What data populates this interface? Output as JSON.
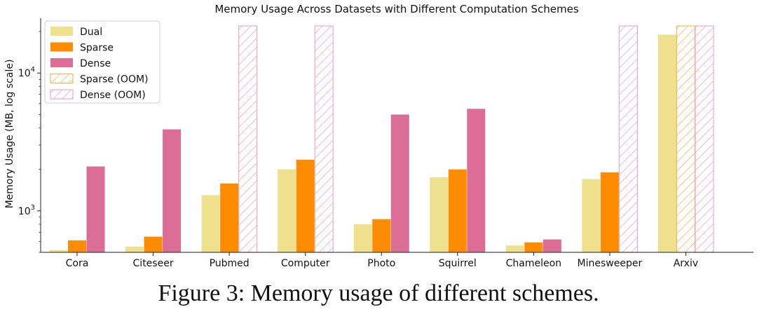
{
  "caption": "Figure 3: Memory usage of different schemes.",
  "chart_data": {
    "type": "bar",
    "title": "Memory Usage Across Datasets with Different Computation Schemes",
    "xlabel": "",
    "ylabel": "Memory Usage (MB, log scale)",
    "yscale": "log",
    "ylim": [
      500,
      25000
    ],
    "yticks": [
      {
        "value": 1000,
        "base": "10",
        "exp": "3"
      },
      {
        "value": 10000,
        "base": "10",
        "exp": "4"
      }
    ],
    "grid": false,
    "legend_position": "top-left",
    "categories": [
      "Cora",
      "Citeseer",
      "Pubmed",
      "Computer",
      "Photo",
      "Squirrel",
      "Chameleon",
      "Minesweeper",
      "Arxiv"
    ],
    "series": [
      {
        "name": "Dual",
        "color": "#efe08e",
        "values": [
          520,
          550,
          1300,
          2000,
          800,
          1750,
          560,
          1700,
          19000
        ]
      },
      {
        "name": "Sparse",
        "color": "#ff8c00",
        "values": [
          610,
          650,
          1580,
          2350,
          870,
          2000,
          590,
          1900,
          null
        ]
      },
      {
        "name": "Dense",
        "color": "#dc6e96",
        "values": [
          2100,
          3900,
          null,
          null,
          5000,
          5500,
          620,
          null,
          null
        ]
      }
    ],
    "oom_series": [
      {
        "name": "Sparse (OOM)",
        "color": "#f5b75e",
        "categories": [
          "Arxiv"
        ]
      },
      {
        "name": "Dense (OOM)",
        "color": "#eeaac0",
        "categories": [
          "Pubmed",
          "Computer",
          "Minesweeper",
          "Arxiv"
        ]
      }
    ]
  }
}
